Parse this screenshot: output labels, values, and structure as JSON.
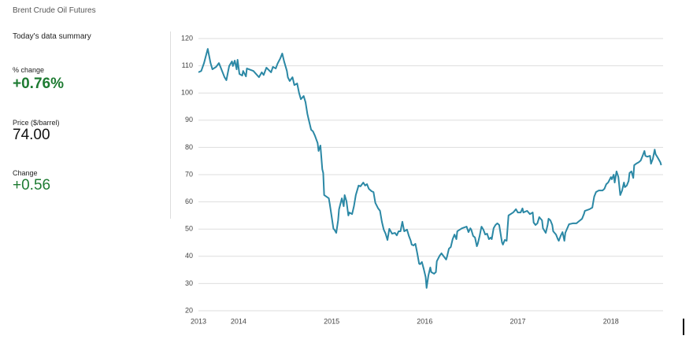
{
  "header": {
    "title": "Brent Crude Oil Futures"
  },
  "summary": {
    "heading": "Today's data summary",
    "items": [
      {
        "label": "% change",
        "value": "+0.76%"
      },
      {
        "label": "Price ($/barrel)",
        "value": "74.00"
      },
      {
        "label": "Change",
        "value": "+0.56"
      }
    ]
  },
  "chart_data": {
    "type": "line",
    "color": "#2b88a5",
    "grid": true,
    "xlim": [
      2013.57,
      2018.56
    ],
    "ylim": [
      20,
      120
    ],
    "xticks": [
      {
        "value": 2013.57,
        "label": "2013"
      },
      2014,
      2015,
      2016,
      2017,
      2018
    ],
    "yticks": [
      20,
      30,
      40,
      50,
      60,
      70,
      80,
      90,
      100,
      110,
      120
    ],
    "x": [
      2013.57,
      2013.6,
      2013.63,
      2013.67,
      2013.7,
      2013.72,
      2013.76,
      2013.79,
      2013.85,
      2013.87,
      2013.9,
      2013.93,
      2013.94,
      2013.96,
      2013.98,
      2013.99,
      2014.01,
      2014.04,
      2014.05,
      2014.08,
      2014.09,
      2014.16,
      2014.22,
      2014.25,
      2014.27,
      2014.3,
      2014.35,
      2014.37,
      2014.4,
      2014.42,
      2014.45,
      2014.47,
      2014.49,
      2014.52,
      2014.53,
      2014.55,
      2014.58,
      2014.6,
      2014.63,
      2014.65,
      2014.67,
      2014.7,
      2014.72,
      2014.74,
      2014.75,
      2014.78,
      2014.8,
      2014.82,
      2014.85,
      2014.86,
      2014.88,
      2014.9,
      2014.91,
      2014.92,
      2014.97,
      2014.98,
      2015.0,
      2015.02,
      2015.03,
      2015.05,
      2015.07,
      2015.08,
      2015.11,
      2015.13,
      2015.14,
      2015.16,
      2015.18,
      2015.19,
      2015.22,
      2015.24,
      2015.26,
      2015.29,
      2015.31,
      2015.34,
      2015.36,
      2015.38,
      2015.4,
      2015.43,
      2015.45,
      2015.47,
      2015.5,
      2015.52,
      2015.54,
      2015.56,
      2015.58,
      2015.6,
      2015.62,
      2015.65,
      2015.68,
      2015.7,
      2015.72,
      2015.74,
      2015.76,
      2015.78,
      2015.81,
      2015.83,
      2015.85,
      2015.86,
      2015.88,
      2015.9,
      2015.92,
      2015.94,
      2015.95,
      2015.97,
      2015.99,
      2016.01,
      2016.02,
      2016.04,
      2016.06,
      2016.07,
      2016.1,
      2016.12,
      2016.13,
      2016.16,
      2016.18,
      2016.21,
      2016.23,
      2016.24,
      2016.26,
      2016.28,
      2016.3,
      2016.32,
      2016.34,
      2016.35,
      2016.4,
      2016.45,
      2016.47,
      2016.49,
      2016.5,
      2016.52,
      2016.54,
      2016.56,
      2016.57,
      2016.59,
      2016.61,
      2016.63,
      2016.65,
      2016.67,
      2016.69,
      2016.71,
      2016.72,
      2016.74,
      2016.76,
      2016.78,
      2016.8,
      2016.83,
      2016.84,
      2016.86,
      2016.88,
      2016.9,
      2016.95,
      2016.98,
      2017.0,
      2017.03,
      2017.05,
      2017.06,
      2017.1,
      2017.13,
      2017.16,
      2017.17,
      2017.19,
      2017.21,
      2017.23,
      2017.26,
      2017.27,
      2017.3,
      2017.32,
      2017.33,
      2017.35,
      2017.37,
      2017.38,
      2017.41,
      2017.43,
      2017.44,
      2017.46,
      2017.48,
      2017.5,
      2017.51,
      2017.55,
      2017.59,
      2017.63,
      2017.65,
      2017.69,
      2017.71,
      2017.72,
      2017.77,
      2017.8,
      2017.82,
      2017.84,
      2017.87,
      2017.91,
      2017.93,
      2017.95,
      2017.97,
      2018.0,
      2018.01,
      2018.03,
      2018.04,
      2018.06,
      2018.08,
      2018.1,
      2018.12,
      2018.14,
      2018.15,
      2018.17,
      2018.19,
      2018.2,
      2018.22,
      2018.24,
      2018.25,
      2018.27,
      2018.3,
      2018.32,
      2018.34,
      2018.36,
      2018.37,
      2018.39,
      2018.42,
      2018.43,
      2018.45,
      2018.47,
      2018.48,
      2018.5,
      2018.53,
      2018.54
    ],
    "values": [
      107.6,
      108.1,
      111.0,
      116.2,
      111.0,
      108.7,
      109.6,
      111.0,
      105.8,
      104.7,
      109.9,
      111.6,
      109.9,
      111.9,
      108.7,
      112.2,
      107.0,
      106.4,
      108.1,
      106.1,
      109.0,
      108.1,
      105.8,
      107.6,
      106.6,
      109.3,
      107.6,
      109.6,
      109.0,
      110.8,
      112.8,
      114.5,
      111.6,
      108.1,
      105.8,
      104.4,
      105.8,
      102.9,
      103.5,
      100.1,
      97.7,
      98.9,
      96.6,
      92.3,
      90.8,
      86.5,
      85.9,
      84.4,
      81.6,
      78.7,
      80.7,
      72.0,
      70.6,
      62.5,
      61.3,
      59.3,
      54.7,
      50.1,
      49.8,
      48.6,
      53.2,
      57.3,
      61.3,
      58.4,
      62.5,
      60.2,
      55.0,
      56.1,
      55.5,
      58.4,
      62.5,
      66.0,
      65.7,
      67.1,
      66.0,
      66.5,
      64.8,
      63.9,
      63.6,
      59.6,
      57.6,
      56.7,
      52.7,
      49.8,
      48.3,
      46.0,
      50.1,
      48.3,
      48.6,
      47.7,
      49.2,
      49.2,
      52.7,
      49.2,
      49.8,
      47.5,
      45.7,
      44.3,
      44.0,
      44.6,
      41.1,
      37.3,
      37.1,
      37.9,
      35.3,
      32.4,
      28.4,
      33.0,
      35.9,
      34.2,
      33.6,
      34.2,
      38.2,
      40.2,
      41.1,
      39.7,
      38.8,
      39.9,
      42.8,
      43.4,
      46.3,
      48.0,
      46.3,
      49.2,
      50.3,
      50.9,
      48.9,
      50.3,
      49.8,
      47.5,
      46.9,
      43.7,
      44.6,
      47.5,
      50.9,
      49.8,
      48.0,
      48.3,
      46.3,
      46.9,
      46.3,
      50.3,
      51.5,
      52.1,
      51.5,
      45.1,
      44.3,
      46.0,
      45.7,
      55.0,
      56.1,
      57.3,
      56.1,
      56.1,
      57.6,
      56.1,
      56.7,
      55.5,
      56.1,
      52.4,
      51.5,
      52.1,
      54.4,
      53.2,
      50.3,
      48.6,
      51.5,
      53.8,
      53.2,
      51.5,
      49.2,
      48.0,
      46.3,
      45.7,
      47.5,
      48.9,
      45.7,
      48.6,
      51.8,
      52.1,
      52.1,
      52.7,
      53.8,
      55.5,
      56.7,
      57.3,
      57.9,
      61.9,
      63.6,
      64.2,
      64.2,
      64.8,
      66.5,
      67.1,
      69.1,
      68.3,
      70.0,
      67.1,
      71.2,
      69.1,
      62.5,
      64.2,
      67.1,
      65.4,
      66.0,
      67.7,
      70.6,
      71.2,
      68.8,
      73.5,
      74.0,
      74.6,
      75.2,
      76.9,
      78.7,
      76.9,
      76.6,
      76.9,
      74.0,
      75.8,
      79.2,
      77.5,
      76.4,
      74.6,
      73.5
    ]
  }
}
